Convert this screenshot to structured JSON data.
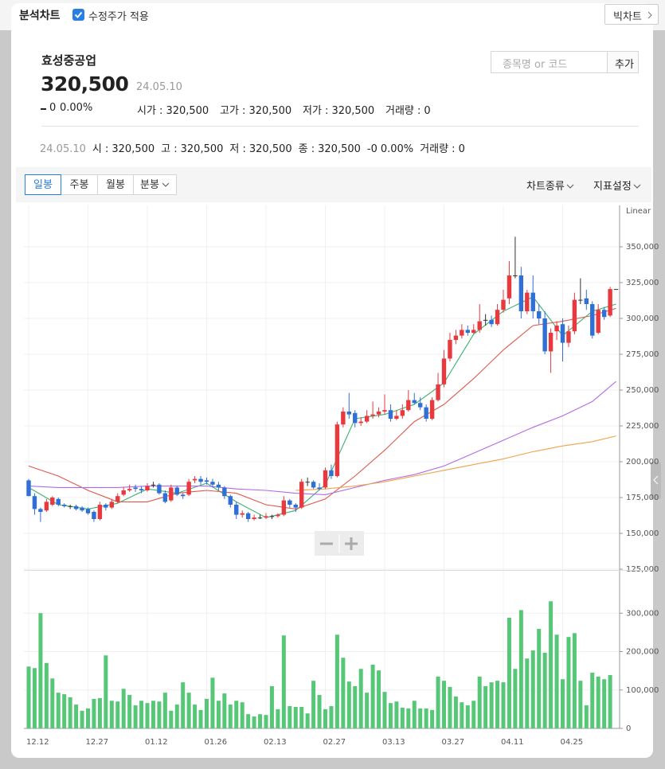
{
  "topbar": {
    "title": "분석차트",
    "checkbox": "수정주가 적용",
    "button": "빅차트"
  },
  "stock": {
    "name": "효성중공업",
    "price": "320,500",
    "date": "24.05.10",
    "change": "0",
    "change_pct": "0.00%",
    "stats": [
      {
        "label": "시가 :",
        "value": "320,500"
      },
      {
        "label": "고가 :",
        "value": "320,500"
      },
      {
        "label": "저가 :",
        "value": "320,500"
      },
      {
        "label": "거래량 :",
        "value": "0"
      }
    ]
  },
  "search": {
    "placeholder": "종목명 or 코드",
    "button": "추가"
  },
  "info": {
    "date": "24.05.10",
    "items": [
      {
        "label": "시 :",
        "value": "320,500"
      },
      {
        "label": "고 :",
        "value": "320,500"
      },
      {
        "label": "저 :",
        "value": "320,500"
      },
      {
        "label": "종 :",
        "value": "320,500"
      }
    ],
    "change": "-0",
    "change_pct": "0.00%",
    "volume_label": "거래량 :",
    "volume": "0"
  },
  "tabs": {
    "periods": [
      "일봉",
      "주봉",
      "월봉",
      "분봉"
    ],
    "active": 0,
    "menus": [
      "차트종류",
      "지표설정"
    ]
  },
  "chart_data": {
    "type": "candlestick",
    "scale_label": "Linear",
    "categories": [
      "12.12",
      null,
      null,
      null,
      null,
      null,
      null,
      null,
      null,
      null,
      "12.27",
      null,
      null,
      null,
      null,
      null,
      null,
      null,
      null,
      null,
      "01.12",
      null,
      null,
      null,
      null,
      null,
      null,
      null,
      null,
      null,
      "01.26",
      null,
      null,
      null,
      null,
      null,
      null,
      null,
      null,
      null,
      "02.13",
      null,
      null,
      null,
      null,
      null,
      null,
      null,
      null,
      null,
      "02.27",
      null,
      null,
      null,
      null,
      null,
      null,
      null,
      null,
      null,
      "03.13",
      null,
      null,
      null,
      null,
      null,
      null,
      null,
      null,
      null,
      "03.27",
      null,
      null,
      null,
      null,
      null,
      null,
      null,
      null,
      null,
      "04.11",
      null,
      null,
      null,
      null,
      null,
      null,
      null,
      null,
      null,
      "04.25",
      null,
      null,
      null,
      null,
      null,
      null,
      null,
      null,
      null
    ],
    "open": [
      187000,
      176000,
      167000,
      166000,
      170000,
      174000,
      170000,
      169000,
      169000,
      168000,
      167000,
      165000,
      160000,
      170000,
      168000,
      172000,
      177000,
      180000,
      182000,
      181000,
      180000,
      184000,
      184000,
      178000,
      173000,
      182000,
      177000,
      177000,
      187000,
      188000,
      187000,
      186000,
      184000,
      182000,
      176000,
      170000,
      163000,
      164000,
      160000,
      161000,
      161000,
      162000,
      162000,
      163000,
      173000,
      170000,
      168000,
      186000,
      186000,
      182000,
      182000,
      194000,
      190000,
      226000,
      235000,
      234000,
      227000,
      228000,
      232000,
      233000,
      235000,
      236000,
      230000,
      232000,
      236000,
      243000,
      241000,
      238000,
      230000,
      243000,
      254000,
      272000,
      285000,
      288000,
      292000,
      290000,
      292000,
      299000,
      299000,
      296000,
      306000,
      314000,
      330000,
      330000,
      305000,
      318000,
      305000,
      300000,
      277000,
      291000,
      296000,
      283000,
      291000,
      313000,
      314000,
      310000,
      290000,
      306000,
      302000,
      320500
    ],
    "high": [
      188000,
      178000,
      168000,
      174000,
      176000,
      175000,
      171000,
      170000,
      170000,
      169000,
      168000,
      166000,
      172000,
      171000,
      174000,
      178000,
      182000,
      184000,
      184000,
      183000,
      185000,
      186000,
      185000,
      180000,
      184000,
      183000,
      178000,
      188000,
      190000,
      190000,
      189000,
      188000,
      186000,
      183000,
      177000,
      172000,
      166000,
      165000,
      163000,
      163000,
      164000,
      163000,
      164000,
      176000,
      174000,
      171000,
      188000,
      189000,
      187000,
      185000,
      196000,
      198000,
      228000,
      238000,
      248000,
      236000,
      231000,
      236000,
      242000,
      238000,
      247000,
      240000,
      236000,
      240000,
      250000,
      248000,
      245000,
      240000,
      245000,
      262000,
      278000,
      290000,
      292000,
      296000,
      295000,
      296000,
      310000,
      303000,
      302000,
      310000,
      320000,
      340000,
      357000,
      336000,
      320000,
      330000,
      310000,
      305000,
      293000,
      298000,
      300000,
      295000,
      318000,
      328000,
      320000,
      312000,
      310000,
      308000,
      322000,
      320500
    ],
    "low": [
      176000,
      163000,
      158000,
      165000,
      169000,
      169000,
      168000,
      167000,
      166000,
      165000,
      163000,
      158000,
      159000,
      166000,
      167000,
      171000,
      176000,
      179000,
      179000,
      178000,
      179000,
      182000,
      177000,
      171000,
      172000,
      176000,
      174000,
      176000,
      185000,
      184000,
      184000,
      182000,
      180000,
      174000,
      168000,
      160000,
      161000,
      158000,
      159000,
      160000,
      160000,
      160000,
      161000,
      162000,
      168000,
      165000,
      167000,
      183000,
      181000,
      180000,
      181000,
      188000,
      189000,
      224000,
      230000,
      224000,
      225000,
      227000,
      230000,
      231000,
      233000,
      228000,
      229000,
      230000,
      235000,
      240000,
      236000,
      228000,
      229000,
      242000,
      252000,
      270000,
      282000,
      286000,
      288000,
      289000,
      290000,
      295000,
      294000,
      295000,
      304000,
      310000,
      328000,
      300000,
      303000,
      300000,
      296000,
      275000,
      262000,
      285000,
      270000,
      280000,
      289000,
      310000,
      306000,
      286000,
      289000,
      299000,
      301000,
      320500
    ],
    "close": [
      176000,
      167000,
      165000,
      172000,
      175000,
      170000,
      169000,
      169000,
      167000,
      166000,
      164000,
      160000,
      170000,
      168000,
      172000,
      176000,
      180000,
      181000,
      181000,
      180000,
      183000,
      184000,
      178000,
      172000,
      182000,
      177000,
      176000,
      186000,
      188000,
      186000,
      186000,
      184000,
      182000,
      176000,
      170000,
      163000,
      164000,
      160000,
      161000,
      161000,
      162000,
      162000,
      163000,
      173000,
      170000,
      168000,
      186000,
      186000,
      182000,
      181000,
      194000,
      190000,
      226000,
      235000,
      233000,
      227000,
      228000,
      232000,
      233000,
      235000,
      236000,
      230000,
      232000,
      236000,
      243000,
      241000,
      238000,
      230000,
      243000,
      254000,
      272000,
      285000,
      288000,
      292000,
      290000,
      292000,
      298000,
      299000,
      296000,
      306000,
      313000,
      330000,
      330000,
      305000,
      318000,
      305000,
      300000,
      277000,
      290000,
      295000,
      283000,
      291000,
      313000,
      313000,
      310000,
      288000,
      306000,
      301000,
      320500,
      320500
    ],
    "up_color": "#e8393f",
    "down_color": "#2f6fd6",
    "flat_color": "#333333",
    "ylim": [
      125000,
      375000
    ],
    "yticks": [
      {
        "value": 125000,
        "label": "125,000"
      },
      {
        "value": 150000,
        "label": "150,000"
      },
      {
        "value": 175000,
        "label": "175,000"
      },
      {
        "value": 200000,
        "label": "200,000"
      },
      {
        "value": 225000,
        "label": "225,000"
      },
      {
        "value": 250000,
        "label": "250,000"
      },
      {
        "value": 275000,
        "label": "275,000"
      },
      {
        "value": 300000,
        "label": "300,000"
      },
      {
        "value": 325000,
        "label": "325,000"
      },
      {
        "value": 350000,
        "label": "350,000"
      }
    ],
    "grid": true,
    "moving_averages": {
      "x": [
        0,
        5,
        10,
        15,
        20,
        25,
        30,
        35,
        40,
        45,
        50,
        55,
        60,
        65,
        70,
        75,
        80,
        85,
        90,
        95,
        99
      ],
      "series": [
        {
          "color": "#3cb371",
          "values": [
            182000,
            170000,
            167000,
            171000,
            181000,
            178000,
            185000,
            172000,
            161000,
            166000,
            184000,
            230000,
            233000,
            240000,
            255000,
            289000,
            305000,
            315000,
            288000,
            305000,
            310000
          ]
        },
        {
          "color": "#e0584b",
          "values": [
            197000,
            190000,
            180000,
            172000,
            172000,
            178000,
            180000,
            178000,
            170000,
            167000,
            174000,
            190000,
            208000,
            228000,
            240000,
            258000,
            278000,
            295000,
            298000,
            302000,
            307000
          ]
        },
        {
          "color": "#b06ae6",
          "values": [
            183000,
            182000,
            182000,
            182000,
            183000,
            183000,
            183000,
            181000,
            180000,
            178000,
            177000,
            182000,
            187000,
            191000,
            197000,
            206000,
            215000,
            224000,
            232000,
            242000,
            256000
          ]
        },
        {
          "color": "#f0a24d",
          "values": [
            null,
            null,
            null,
            null,
            null,
            null,
            null,
            null,
            null,
            180000,
            181000,
            183000,
            186000,
            190000,
            194000,
            198000,
            202000,
            207000,
            211000,
            214000,
            218000
          ]
        }
      ]
    },
    "volume": {
      "color": "#55c776",
      "values": [
        161000,
        157000,
        300000,
        170000,
        130000,
        93000,
        89000,
        81000,
        62000,
        46000,
        52000,
        77000,
        79000,
        190000,
        72000,
        70000,
        103000,
        87000,
        60000,
        72000,
        66000,
        72000,
        70000,
        93000,
        46000,
        62000,
        120000,
        93000,
        62000,
        48000,
        77000,
        132000,
        72000,
        91000,
        62000,
        72000,
        68000,
        37000,
        31000,
        37000,
        35000,
        110000,
        50000,
        242000,
        58000,
        56000,
        56000,
        39000,
        124000,
        87000,
        50000,
        58000,
        244000,
        184000,
        122000,
        110000,
        155000,
        93000,
        166000,
        151000,
        95000,
        66000,
        70000,
        54000,
        52000,
        72000,
        52000,
        52000,
        48000,
        135000,
        124000,
        108000,
        83000,
        68000,
        60000,
        72000,
        135000,
        110000,
        120000,
        124000,
        120000,
        288000,
        155000,
        308000,
        182000,
        203000,
        259000,
        197000,
        331000,
        244000,
        128000,
        238000,
        248000,
        124000,
        60000,
        145000,
        135000,
        128000,
        139000,
        0
      ],
      "ylim": [
        0,
        400000
      ],
      "yticks": [
        0,
        {
          "value": 100000,
          "label": "100,000"
        },
        {
          "value": 200000,
          "label": "200,000"
        },
        {
          "value": 300000,
          "label": "300,000"
        }
      ]
    }
  }
}
